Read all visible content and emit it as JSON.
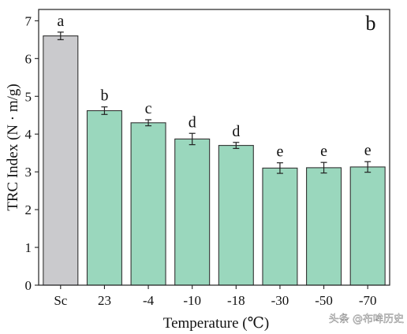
{
  "chart_data": {
    "type": "bar",
    "panel_label": "b",
    "xlabel": "Temperature (℃)",
    "ylabel": "TRC Index (N · m/g)",
    "ylim": [
      0,
      7.3
    ],
    "yticks": [
      0,
      1,
      2,
      3,
      4,
      5,
      6,
      7
    ],
    "categories": [
      "Sc",
      "23",
      "-4",
      "-10",
      "-18",
      "-30",
      "-50",
      "-70"
    ],
    "values": [
      6.6,
      4.62,
      4.3,
      3.87,
      3.7,
      3.1,
      3.11,
      3.13
    ],
    "errors": [
      0.1,
      0.1,
      0.08,
      0.15,
      0.08,
      0.14,
      0.14,
      0.14
    ],
    "significance_letters": [
      "a",
      "b",
      "c",
      "d",
      "d",
      "e",
      "e",
      "e"
    ],
    "bar_colors": [
      "#cacacd",
      "#9ad7bd",
      "#9ad7bd",
      "#9ad7bd",
      "#9ad7bd",
      "#9ad7bd",
      "#9ad7bd",
      "#9ad7bd"
    ],
    "grid": false,
    "legend": "none"
  },
  "watermark": {
    "text": "头条 @布哞历史"
  }
}
